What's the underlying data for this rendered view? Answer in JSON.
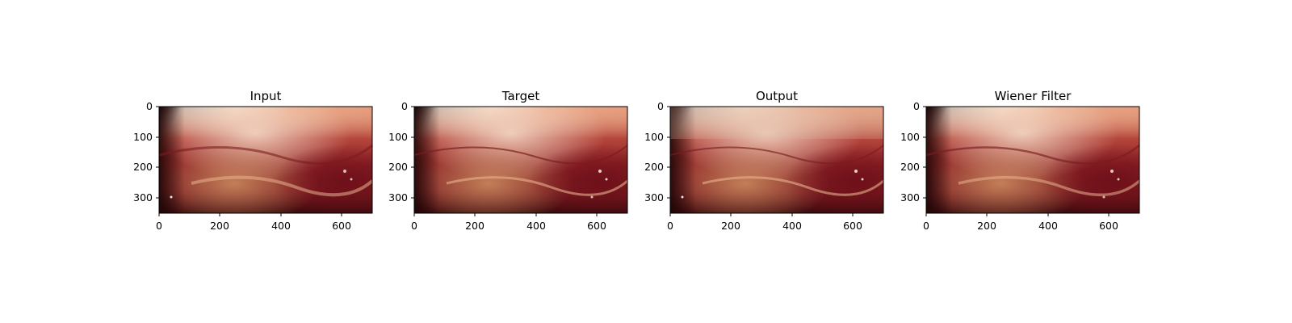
{
  "panels": [
    {
      "title": "Input",
      "variant": "input"
    },
    {
      "title": "Target",
      "variant": "target"
    },
    {
      "title": "Output",
      "variant": "output"
    },
    {
      "title": "Wiener Filter",
      "variant": "wiener"
    }
  ],
  "axes": {
    "x_ticks": [
      "0",
      "200",
      "400",
      "600"
    ],
    "y_ticks": [
      "0",
      "100",
      "200",
      "300"
    ]
  },
  "colors": {
    "tissue_dark": "#5a0f14",
    "tissue_red": "#9e2a2b",
    "tissue_pink": "#e29a7a",
    "highlight": "#f2d2b8"
  }
}
